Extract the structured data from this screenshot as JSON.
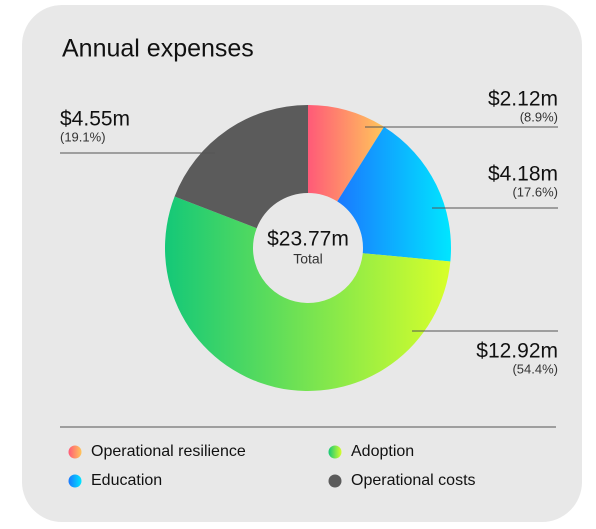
{
  "chart_data": {
    "type": "donut",
    "title": "Annual expenses",
    "total": 23.77,
    "total_label": "$23.77m",
    "total_caption": "Total",
    "categories": [
      "Operational resilience",
      "Education",
      "Adoption",
      "Operational costs"
    ],
    "values": [
      2.12,
      4.18,
      12.92,
      4.55
    ],
    "value_labels": [
      "$2.12m",
      "$4.18m",
      "$12.92m",
      "$4.55m"
    ],
    "percents": [
      8.9,
      17.6,
      54.4,
      19.1
    ],
    "percent_labels": [
      "(8.9%)",
      "(17.6%)",
      "(54.4%)",
      "(19.1%)"
    ],
    "colors": [
      [
        "#ff5a78",
        "#ffc65a"
      ],
      [
        "#1a78ff",
        "#00e6ff"
      ],
      [
        "#14c878",
        "#d8ff2a"
      ],
      [
        "#5b5b5b",
        "#5b5b5b"
      ]
    ]
  }
}
